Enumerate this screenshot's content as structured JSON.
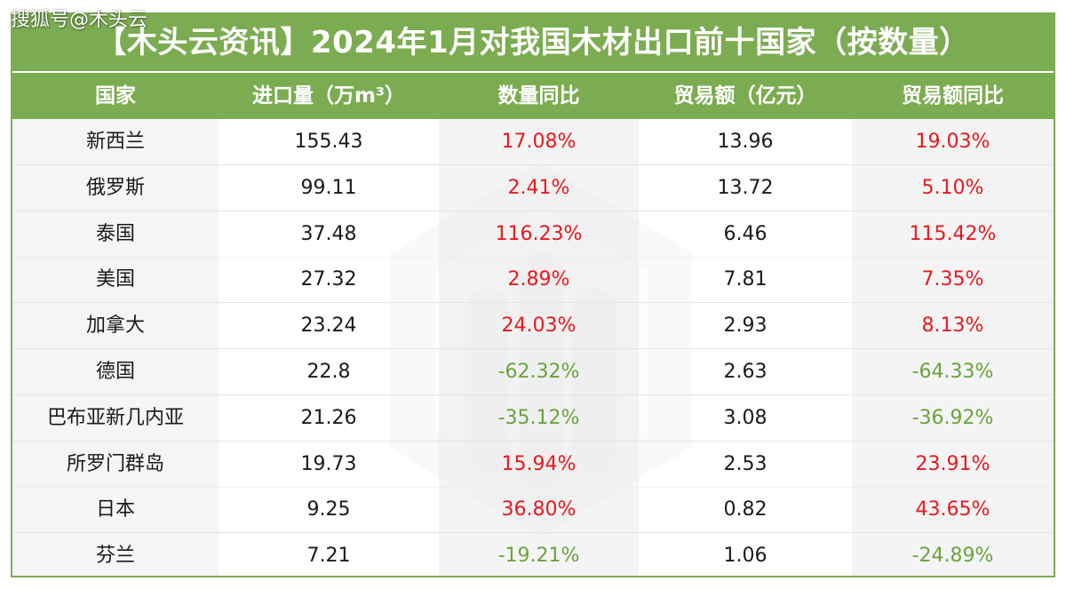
{
  "watermark": "搜狐号@木头云",
  "chart_data": {
    "type": "table",
    "title": "【木头云资讯】2024年1月对我国木材出口前十国家（按数量）",
    "columns": [
      "国家",
      "进口量（万m³）",
      "数量同比",
      "贸易额（亿元）",
      "贸易额同比"
    ],
    "rows": [
      {
        "country": "新西兰",
        "volume": "155.43",
        "volume_yoy": "17.08%",
        "trade_value": "13.96",
        "trade_yoy": "19.03%"
      },
      {
        "country": "俄罗斯",
        "volume": "99.11",
        "volume_yoy": "2.41%",
        "trade_value": "13.72",
        "trade_yoy": "5.10%"
      },
      {
        "country": "泰国",
        "volume": "37.48",
        "volume_yoy": "116.23%",
        "trade_value": "6.46",
        "trade_yoy": "115.42%"
      },
      {
        "country": "美国",
        "volume": "27.32",
        "volume_yoy": "2.89%",
        "trade_value": "7.81",
        "trade_yoy": "7.35%"
      },
      {
        "country": "加拿大",
        "volume": "23.24",
        "volume_yoy": "24.03%",
        "trade_value": "2.93",
        "trade_yoy": "8.13%"
      },
      {
        "country": "德国",
        "volume": "22.8",
        "volume_yoy": "-62.32%",
        "trade_value": "2.63",
        "trade_yoy": "-64.33%"
      },
      {
        "country": "巴布亚新几内亚",
        "volume": "21.26",
        "volume_yoy": "-35.12%",
        "trade_value": "3.08",
        "trade_yoy": "-36.92%"
      },
      {
        "country": "所罗门群岛",
        "volume": "19.73",
        "volume_yoy": "15.94%",
        "trade_value": "2.53",
        "trade_yoy": "23.91%"
      },
      {
        "country": "日本",
        "volume": "9.25",
        "volume_yoy": "36.80%",
        "trade_value": "0.82",
        "trade_yoy": "43.65%"
      },
      {
        "country": "芬兰",
        "volume": "7.21",
        "volume_yoy": "-19.21%",
        "trade_value": "1.06",
        "trade_yoy": "-24.89%"
      }
    ]
  },
  "colors": {
    "header_bg": "#7cac51",
    "positive": "#e8181f",
    "negative": "#6aa33c"
  }
}
